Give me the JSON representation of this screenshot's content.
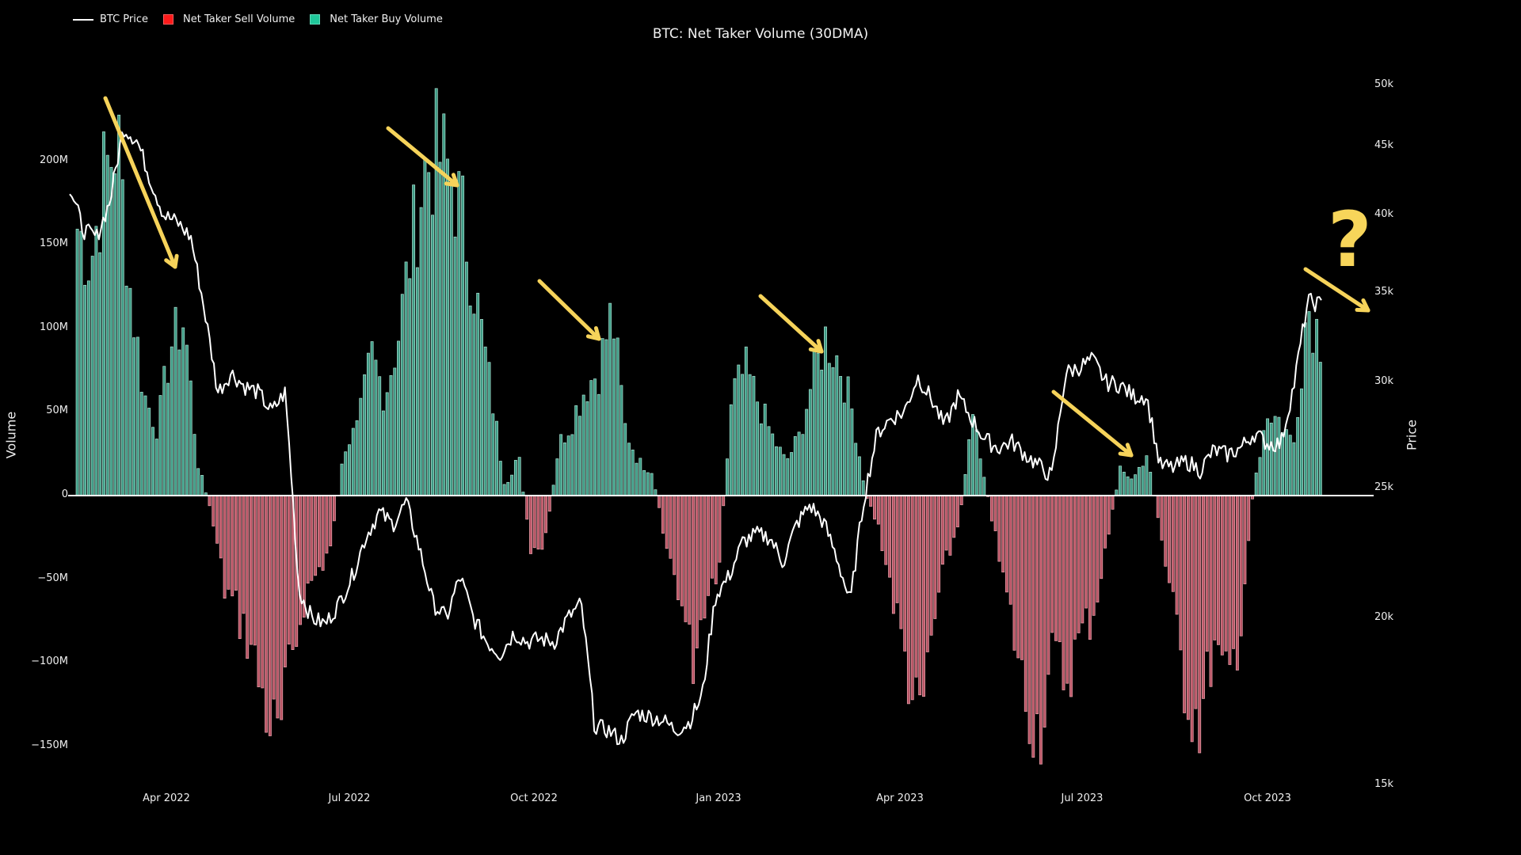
{
  "title": "BTC: Net Taker Volume (30DMA)",
  "legend": [
    {
      "label": "BTC Price",
      "type": "line",
      "color": "#ffffff"
    },
    {
      "label": "Net Taker Sell Volume",
      "type": "box",
      "color": "#ff1a1a"
    },
    {
      "label": "Net Taker Buy Volume",
      "type": "box",
      "color": "#1fc79a"
    }
  ],
  "axes": {
    "left_title": "Volume",
    "right_title": "Price",
    "left_ticks": [
      {
        "label": "200M",
        "value": 200
      },
      {
        "label": "150M",
        "value": 150
      },
      {
        "label": "100M",
        "value": 100
      },
      {
        "label": "50M",
        "value": 50
      },
      {
        "label": "0",
        "value": 0
      },
      {
        "label": "−50M",
        "value": -50
      },
      {
        "label": "−100M",
        "value": -100
      },
      {
        "label": "−150M",
        "value": -150
      }
    ],
    "right_ticks": [
      {
        "label": "50k",
        "value": 50000
      },
      {
        "label": "45k",
        "value": 45000
      },
      {
        "label": "40k",
        "value": 40000
      },
      {
        "label": "35k",
        "value": 35000
      },
      {
        "label": "30k",
        "value": 30000
      },
      {
        "label": "25k",
        "value": 25000
      },
      {
        "label": "20k",
        "value": 20000
      },
      {
        "label": "15k",
        "value": 15000
      }
    ],
    "x_ticks": [
      "Apr 2022",
      "Jul 2022",
      "Oct 2022",
      "Jan 2023",
      "Apr 2023",
      "Jul 2023",
      "Oct 2023"
    ]
  },
  "colors": {
    "background": "#000000",
    "buy_fill": "#3f9c86",
    "buy_edge": "#a9e2d2",
    "sell_fill": "#b95565",
    "sell_edge": "#eaa3ad",
    "price_line": "#ffffff",
    "annotation": "#f6d35a"
  },
  "annotation": {
    "question_mark": "?"
  },
  "chart_data": {
    "type": "bar+line",
    "title": "BTC: Net Taker Volume (30DMA)",
    "xlabel": "",
    "ylabel": "Volume",
    "y2label": "Price",
    "ylim": [
      -160,
      250
    ],
    "y2lim_log": [
      15000,
      50000
    ],
    "y2scale": "log",
    "grid": false,
    "legend_position": "top-left",
    "x_start": "2022-02-14",
    "x_step_days": 7,
    "series": [
      {
        "name": "Net Taker Volume (M, +buy / -sell)",
        "values": [
          160,
          140,
          190,
          215,
          120,
          60,
          40,
          90,
          105,
          20,
          -10,
          -55,
          -70,
          -90,
          -125,
          -150,
          -100,
          -60,
          -45,
          -30,
          30,
          40,
          85,
          60,
          95,
          150,
          195,
          205,
          190,
          160,
          110,
          60,
          5,
          25,
          -40,
          -30,
          30,
          45,
          65,
          75,
          110,
          40,
          20,
          15,
          -30,
          -55,
          -100,
          -60,
          -40,
          60,
          75,
          55,
          35,
          20,
          35,
          70,
          95,
          80,
          50,
          0,
          -20,
          -60,
          -100,
          -140,
          -80,
          -40,
          -15,
          55,
          5,
          -40,
          -80,
          -125,
          -140,
          -95,
          -110,
          -85,
          -70,
          -30,
          15,
          10,
          25,
          -20,
          -70,
          -120,
          -135,
          -90,
          -115,
          -80,
          5,
          50,
          45,
          30,
          115,
          95
        ]
      },
      {
        "name": "BTC Price (USD)",
        "values": [
          42000,
          39000,
          38500,
          41000,
          46500,
          45500,
          42500,
          40000,
          39500,
          38500,
          34000,
          29500,
          30500,
          29800,
          29500,
          28500,
          29500,
          21000,
          20000,
          19800,
          20500,
          21500,
          23000,
          24000,
          23500,
          24400,
          22500,
          20500,
          20000,
          21500,
          20000,
          19200,
          18800,
          19500,
          19200,
          19300,
          19200,
          20000,
          20500,
          16600,
          16500,
          16200,
          17000,
          16900,
          16800,
          16500,
          16700,
          17500,
          20800,
          21500,
          22800,
          23100,
          23000,
          22000,
          23500,
          24300,
          23600,
          22200,
          20500,
          24500,
          27500,
          28200,
          28500,
          30300,
          29200,
          27800,
          29300,
          28200,
          27200,
          26800,
          27100,
          26500,
          26000,
          25500,
          30500,
          30800,
          31200,
          30000,
          29900,
          29300,
          29300,
          26000,
          25900,
          26200,
          25800,
          26700,
          26500,
          26800,
          27500,
          27000,
          27000,
          30000,
          34500,
          34300
        ]
      }
    ]
  }
}
